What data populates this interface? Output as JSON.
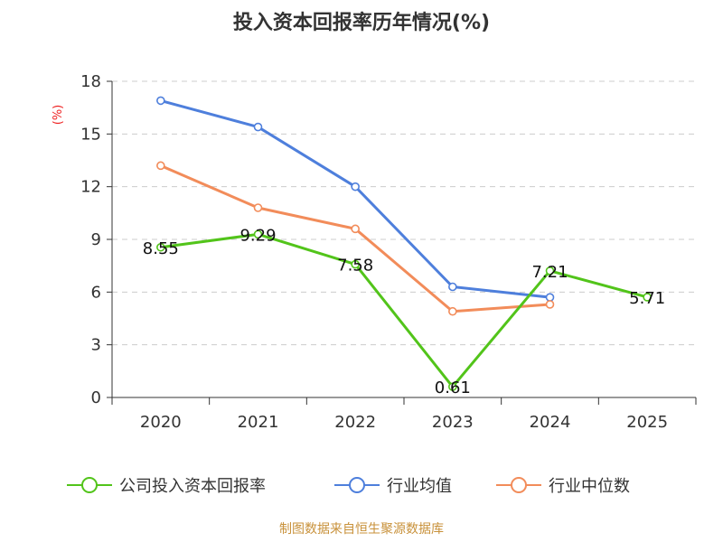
{
  "chart_data": {
    "type": "line",
    "title": "投入资本回报率历年情况(%)",
    "ylabel": "(%)",
    "xlabel": "",
    "categories": [
      "2020",
      "2021",
      "2022",
      "2023",
      "2024",
      "2025"
    ],
    "yticks": [
      0,
      3,
      6,
      9,
      12,
      15,
      18
    ],
    "ylim": [
      0,
      18
    ],
    "grid": true,
    "legend_position": "bottom",
    "series": [
      {
        "name": "公司投入资本回报率",
        "color": "#52c41a",
        "values": [
          8.55,
          9.29,
          7.58,
          0.61,
          7.21,
          5.71
        ],
        "labels": [
          "8.55",
          "9.29",
          "7.58",
          "0.61",
          "7.21",
          "5.71"
        ]
      },
      {
        "name": "行业均值",
        "color": "#4e7fdc",
        "values": [
          16.9,
          15.4,
          12.0,
          6.3,
          5.7,
          null
        ]
      },
      {
        "name": "行业中位数",
        "color": "#f28c5a",
        "values": [
          13.2,
          10.8,
          9.6,
          4.9,
          5.3,
          null
        ]
      }
    ]
  },
  "source": {
    "text": "制图数据来自恒生聚源数据库",
    "color": "#c8913a"
  }
}
